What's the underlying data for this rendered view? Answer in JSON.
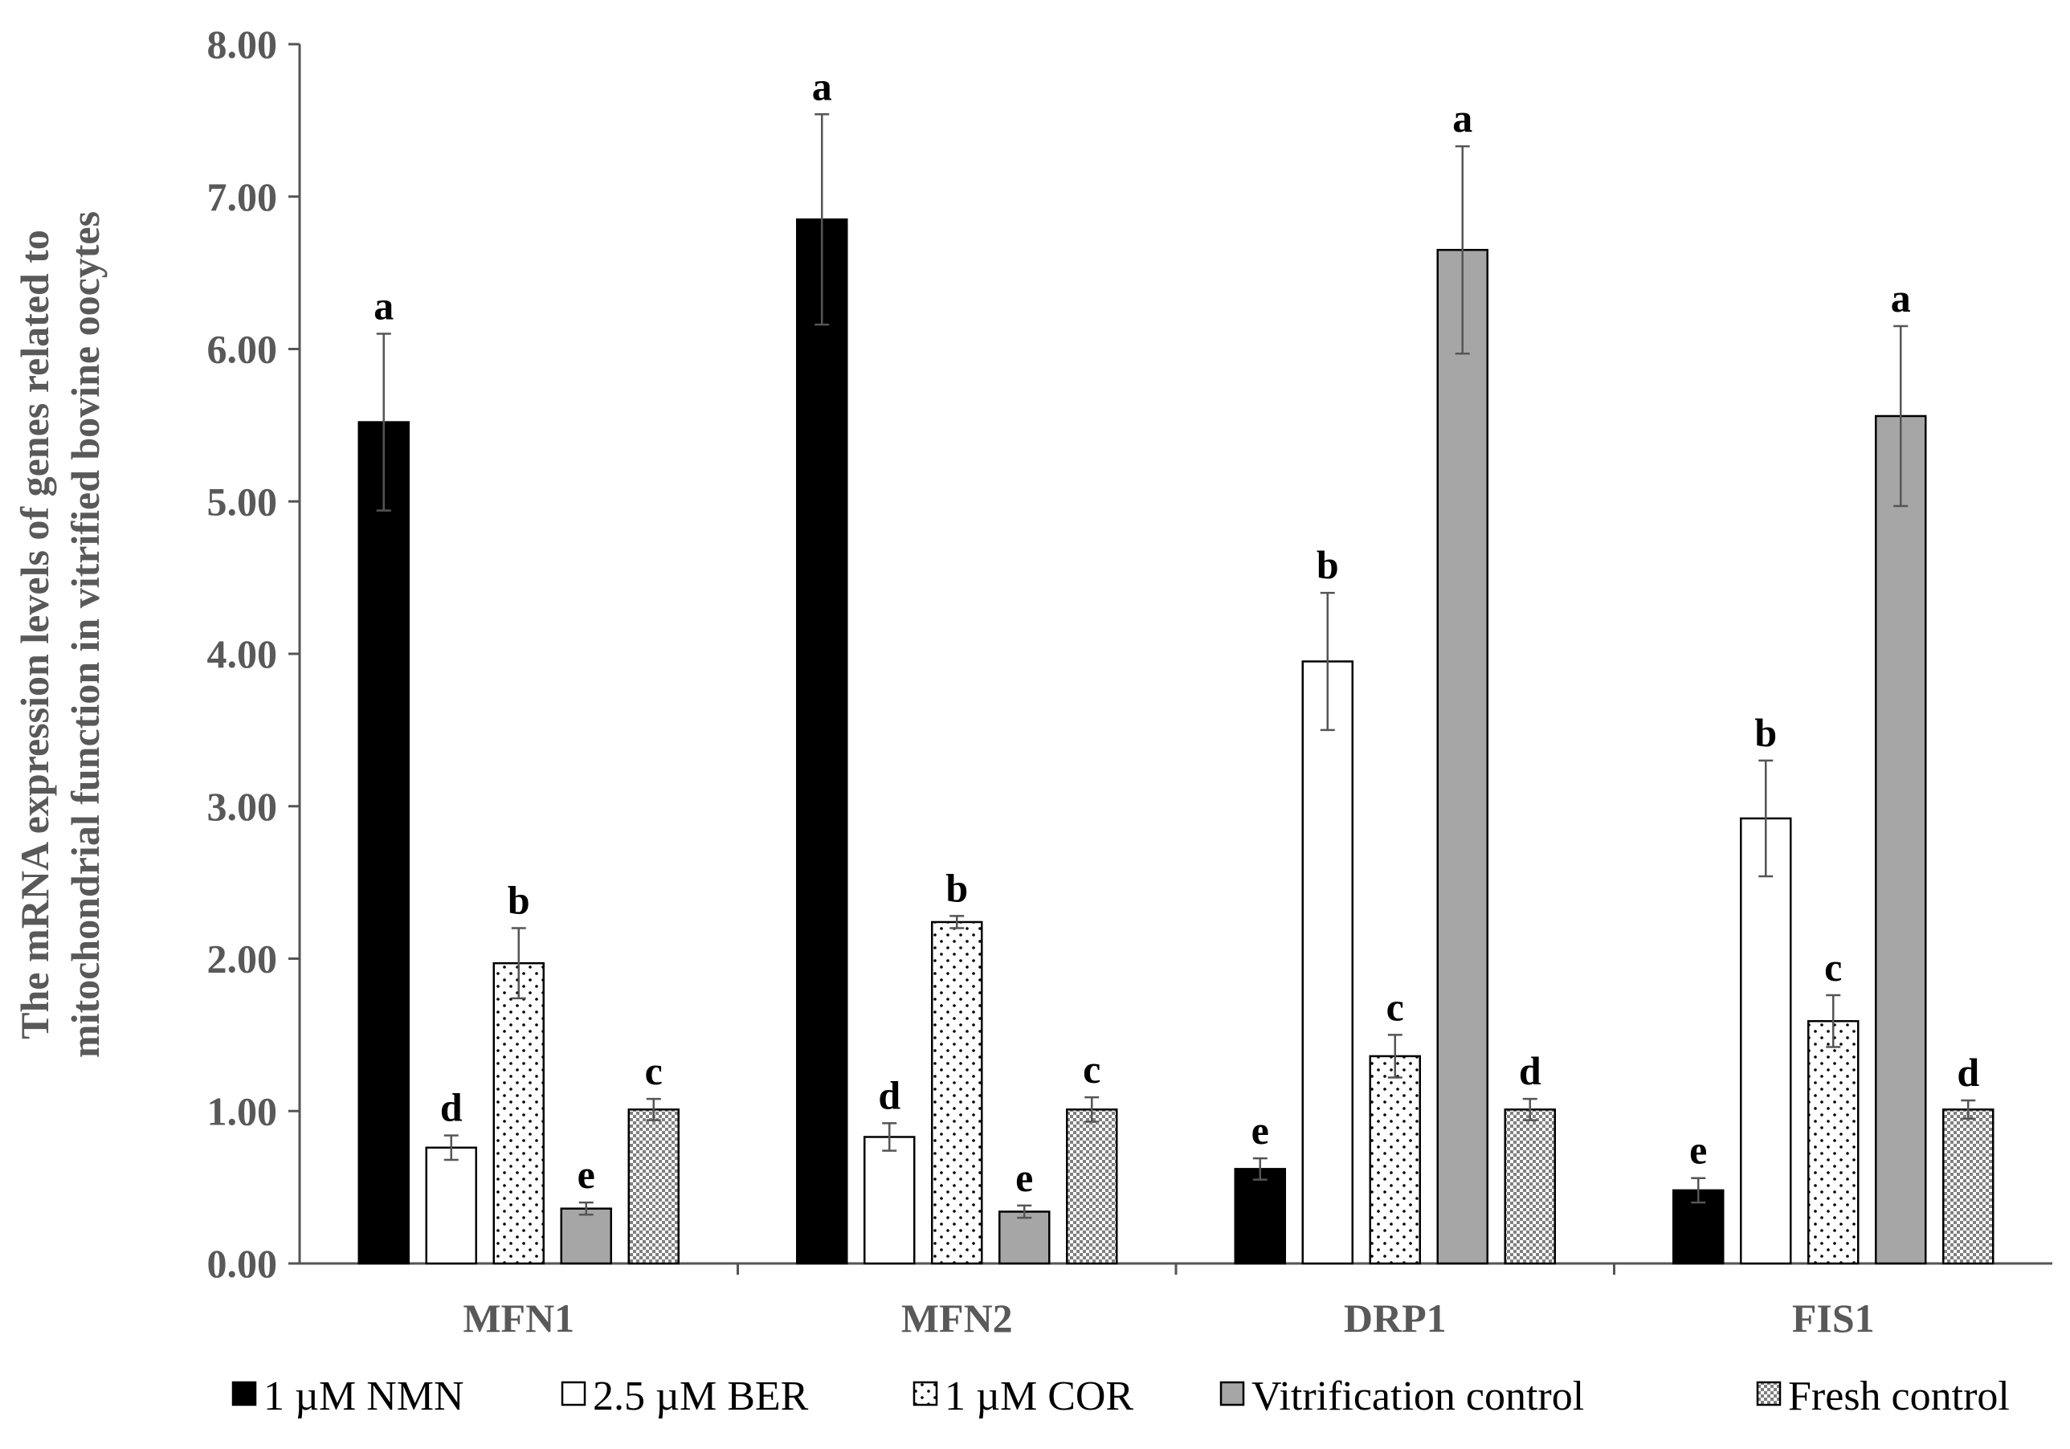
{
  "chart_data": {
    "type": "bar",
    "title": "",
    "xlabel": "",
    "ylabel_lines": [
      "The mRNA expression levels of genes related to",
      "mitochondrial function in vitrified bovine oocytes"
    ],
    "ylim": [
      0,
      8
    ],
    "yticks": [
      "0.00",
      "1.00",
      "2.00",
      "3.00",
      "4.00",
      "5.00",
      "6.00",
      "7.00",
      "8.00"
    ],
    "categories": [
      "MFN1",
      "MFN2",
      "DRP1",
      "FIS1"
    ],
    "series": [
      {
        "name": "1 µM NMN",
        "pattern": "solid-black",
        "values": [
          5.52,
          6.85,
          0.62,
          0.48
        ],
        "errors": [
          0.58,
          0.69,
          0.07,
          0.08
        ],
        "letters": [
          "a",
          "a",
          "e",
          "e"
        ]
      },
      {
        "name": "2.5 µM BER",
        "pattern": "white",
        "values": [
          0.76,
          0.83,
          3.95,
          2.92
        ],
        "errors": [
          0.08,
          0.09,
          0.45,
          0.38
        ],
        "letters": [
          "d",
          "d",
          "b",
          "b"
        ]
      },
      {
        "name": "1 µM COR",
        "pattern": "dotted",
        "values": [
          1.97,
          2.24,
          1.36,
          1.59
        ],
        "errors": [
          0.23,
          0.04,
          0.14,
          0.17
        ],
        "letters": [
          "b",
          "b",
          "c",
          "c"
        ]
      },
      {
        "name": "Vitrification control",
        "pattern": "solid-gray",
        "values": [
          0.36,
          0.34,
          6.65,
          5.56
        ],
        "errors": [
          0.04,
          0.04,
          0.68,
          0.59
        ],
        "letters": [
          "e",
          "e",
          "a",
          "a"
        ]
      },
      {
        "name": "Fresh control",
        "pattern": "checker",
        "values": [
          1.01,
          1.01,
          1.01,
          1.01
        ],
        "errors": [
          0.07,
          0.08,
          0.07,
          0.06
        ],
        "letters": [
          "c",
          "c",
          "d",
          "d"
        ]
      }
    ],
    "legend_position": "bottom",
    "grid": false
  },
  "colors": {
    "axis": "#555555",
    "text": "#595959",
    "black_bar": "#000000",
    "gray_bar": "#a6a6a6",
    "bar_outline": "#000000",
    "error_bar": "#555555"
  }
}
